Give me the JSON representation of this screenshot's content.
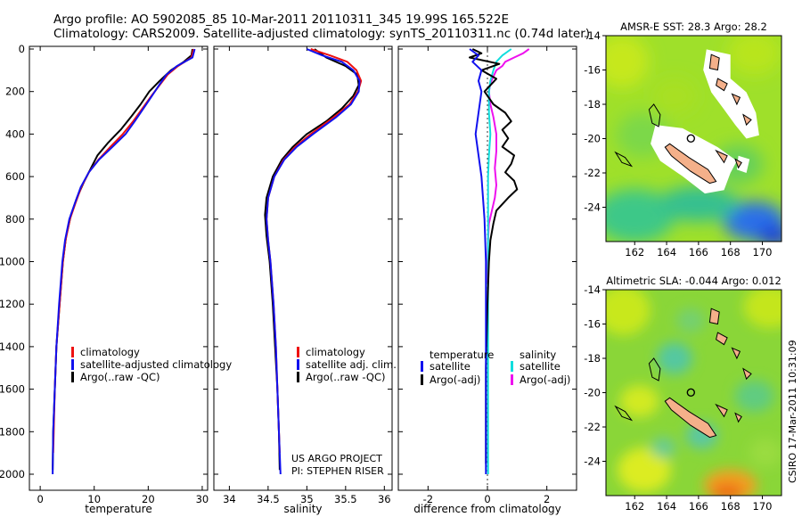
{
  "title": {
    "line1": "Argo profile: AO 5902085_85 10-Mar-2011 20110311_345 19.99S 165.522E",
    "line2": "Climatology: CARS2009. Satellite-adjusted climatology: synTS_20110311.nc (0.74d later)"
  },
  "colors": {
    "climatology": "#ee1111",
    "satellite": "#1111ee",
    "argo": "#000000",
    "salinity_satellite": "#11dddd",
    "salinity_argo": "#ee11ee"
  },
  "project_note": {
    "line1": "US ARGO PROJECT",
    "line2": "PI: STEPHEN RISER"
  },
  "side_stamp": "CSIRO 17-Mar-2011 10:31:09",
  "chart_data": [
    {
      "id": "temperature",
      "type": "line",
      "xlabel": "temperature",
      "xlim": [
        -2,
        31
      ],
      "xticks": [
        0,
        10,
        20,
        30
      ],
      "ylim": [
        2050,
        0
      ],
      "yticks": [
        0,
        200,
        400,
        600,
        800,
        1000,
        1200,
        1400,
        1600,
        1800,
        2000
      ],
      "legend": [
        "climatology",
        "satellite-adjusted climatology",
        "Argo(..raw -QC)"
      ],
      "series": [
        {
          "name": "climatology",
          "color_key": "climatology",
          "depth": [
            0,
            40,
            80,
            120,
            170,
            220,
            280,
            340,
            400,
            460,
            520,
            580,
            650,
            720,
            800,
            900,
            1000,
            1200,
            1400,
            1600,
            1800,
            1900
          ],
          "values": [
            28.4,
            28.0,
            25.5,
            23.6,
            22.1,
            20.6,
            18.9,
            17.2,
            15.3,
            13.0,
            10.8,
            9.0,
            7.6,
            6.6,
            5.5,
            4.7,
            4.2,
            3.6,
            3.0,
            2.7,
            2.5,
            2.4
          ]
        },
        {
          "name": "satellite-adjusted climatology",
          "color_key": "satellite",
          "depth": [
            0,
            40,
            80,
            120,
            170,
            220,
            280,
            340,
            400,
            460,
            520,
            580,
            650,
            720,
            800,
            900,
            1000,
            1200,
            1400,
            1600,
            1800,
            2000
          ],
          "values": [
            28.6,
            28.2,
            25.3,
            23.4,
            22.0,
            20.7,
            19.1,
            17.5,
            15.8,
            13.4,
            10.9,
            9.0,
            7.5,
            6.5,
            5.4,
            4.6,
            4.1,
            3.5,
            3.0,
            2.7,
            2.4,
            2.3
          ]
        },
        {
          "name": "Argo(..raw -QC)",
          "color_key": "argo",
          "depth": [
            0,
            30,
            60,
            100,
            150,
            200,
            260,
            320,
            380,
            440,
            500,
            560,
            620,
            700,
            780,
            880,
            1000,
            1200,
            1400,
            1600,
            1800,
            1980
          ],
          "values": [
            28.2,
            28.0,
            26.6,
            24.2,
            22.1,
            20.2,
            18.6,
            16.8,
            14.9,
            12.6,
            10.6,
            9.4,
            8.2,
            6.8,
            5.7,
            4.8,
            4.2,
            3.6,
            3.0,
            2.7,
            2.4,
            2.3
          ]
        }
      ]
    },
    {
      "id": "salinity",
      "type": "line",
      "xlabel": "salinity",
      "xlim": [
        33.8,
        36.1
      ],
      "xticks": [
        34,
        34.5,
        35,
        35.5,
        36
      ],
      "ylim": [
        2050,
        0
      ],
      "legend": [
        "climatology",
        "satellite adj. clim.",
        "Argo(..raw -QC)"
      ],
      "series": [
        {
          "name": "climatology",
          "color_key": "climatology",
          "depth": [
            0,
            30,
            60,
            100,
            150,
            200,
            260,
            320,
            400,
            460,
            520,
            600,
            700,
            800,
            900,
            1000,
            1200,
            1400,
            1600,
            1800,
            1900
          ],
          "values": [
            35.05,
            35.3,
            35.52,
            35.64,
            35.7,
            35.66,
            35.55,
            35.35,
            35.05,
            34.85,
            34.7,
            34.58,
            34.5,
            34.48,
            34.5,
            34.53,
            34.57,
            34.6,
            34.62,
            34.64,
            34.65
          ]
        },
        {
          "name": "satellite adj. clim.",
          "color_key": "satellite",
          "depth": [
            0,
            30,
            60,
            100,
            150,
            200,
            260,
            320,
            400,
            460,
            520,
            600,
            700,
            800,
            900,
            1000,
            1200,
            1400,
            1600,
            1800,
            2000
          ],
          "values": [
            35.0,
            35.2,
            35.45,
            35.6,
            35.68,
            35.67,
            35.57,
            35.38,
            35.08,
            34.87,
            34.71,
            34.58,
            34.5,
            34.48,
            34.5,
            34.53,
            34.57,
            34.6,
            34.62,
            34.64,
            34.66
          ]
        },
        {
          "name": "Argo(..raw -QC)",
          "color_key": "argo",
          "depth": [
            0,
            40,
            80,
            120,
            170,
            220,
            280,
            340,
            400,
            460,
            520,
            600,
            700,
            780,
            880,
            1000,
            1200,
            1400,
            1600,
            1800,
            1980
          ],
          "values": [
            35.1,
            35.25,
            35.5,
            35.65,
            35.67,
            35.6,
            35.45,
            35.25,
            35.0,
            34.82,
            34.68,
            34.56,
            34.48,
            34.46,
            34.48,
            34.52,
            34.56,
            34.59,
            34.62,
            34.64,
            34.65
          ]
        }
      ]
    },
    {
      "id": "difference",
      "type": "line",
      "xlabel": "difference from climatology",
      "xlim": [
        -3,
        3
      ],
      "xticks": [
        -2,
        0,
        2
      ],
      "ylim": [
        2050,
        0
      ],
      "legend": [
        "temperature",
        "satellite",
        "Argo(-adj)",
        "salinity",
        "satellite",
        "Argo(-adj)"
      ],
      "series": [
        {
          "name": "temperature satellite",
          "color_key": "satellite",
          "depth": [
            0,
            30,
            60,
            100,
            150,
            200,
            300,
            400,
            500,
            600,
            700,
            800,
            1000,
            1400,
            1800,
            2000
          ],
          "values": [
            -0.6,
            -0.3,
            -0.5,
            -0.2,
            -0.3,
            -0.2,
            -0.3,
            -0.4,
            -0.3,
            -0.2,
            -0.15,
            -0.1,
            -0.05,
            -0.05,
            -0.05,
            -0.05
          ]
        },
        {
          "name": "temperature Argo(-adj)",
          "color_key": "argo",
          "depth": [
            0,
            20,
            40,
            70,
            100,
            140,
            200,
            260,
            300,
            340,
            380,
            420,
            460,
            500,
            540,
            580,
            620,
            660,
            700,
            760,
            820,
            900,
            1000,
            1200,
            1500,
            1800,
            1950
          ],
          "values": [
            -0.5,
            -0.2,
            -0.6,
            0.4,
            -0.2,
            0.3,
            -0.1,
            0.2,
            0.6,
            0.8,
            0.5,
            0.7,
            0.5,
            0.9,
            0.8,
            0.6,
            0.9,
            1.0,
            0.7,
            0.3,
            0.2,
            0.1,
            0.05,
            0.0,
            -0.05,
            -0.05,
            -0.05
          ]
        },
        {
          "name": "salinity satellite",
          "color_key": "salinity_satellite",
          "depth": [
            0,
            30,
            60,
            100,
            150,
            200,
            300,
            400,
            500,
            600,
            800,
            1000,
            1400,
            1800,
            2000
          ],
          "values": [
            0.8,
            0.5,
            0.3,
            0.2,
            0.1,
            0.05,
            0.05,
            0.1,
            0.05,
            0.02,
            0.02,
            0.02,
            0.02,
            0.02,
            0.02
          ]
        },
        {
          "name": "salinity Argo(-adj)",
          "color_key": "salinity_argo",
          "depth": [
            0,
            20,
            40,
            60,
            80,
            100,
            130,
            160,
            200,
            260,
            320,
            400,
            480,
            560,
            640,
            700,
            760,
            820,
            900,
            1000,
            1100
          ],
          "values": [
            1.4,
            1.2,
            0.9,
            0.6,
            0.5,
            0.3,
            0.2,
            0.1,
            0.05,
            0.1,
            0.2,
            0.3,
            0.3,
            0.25,
            0.3,
            0.25,
            0.15,
            0.05,
            0.02,
            0.0,
            0.0
          ]
        }
      ]
    },
    {
      "id": "sst_map",
      "type": "heatmap",
      "title": "AMSR-E SST: 28.3  Argo: 28.2",
      "xticks": [
        162,
        164,
        166,
        168,
        170
      ],
      "yticks": [
        -14,
        -16,
        -18,
        -20,
        -22,
        -24
      ],
      "xlim": [
        160.2,
        171.2
      ],
      "ylim": [
        -26.0,
        -14.0
      ],
      "argo_position": [
        165.522,
        -19.99
      ]
    },
    {
      "id": "sla_map",
      "type": "heatmap",
      "title": "Altimetric SLA: -0.044  Argo: 0.012",
      "xticks": [
        162,
        164,
        166,
        168,
        170
      ],
      "yticks": [
        -14,
        -16,
        -18,
        -20,
        -22,
        -24
      ],
      "xlim": [
        160.2,
        171.2
      ],
      "ylim": [
        -26.0,
        -14.0
      ],
      "argo_position": [
        165.522,
        -19.99
      ]
    }
  ]
}
